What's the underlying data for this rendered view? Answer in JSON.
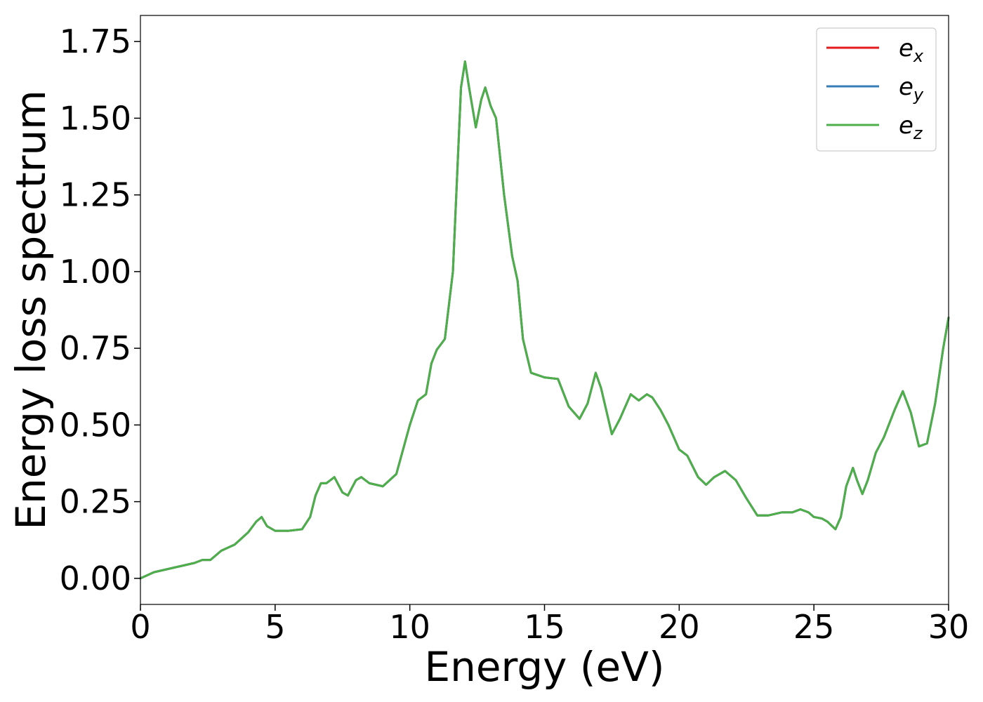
{
  "chart_data": {
    "type": "line",
    "xlabel": "Energy (eV)",
    "ylabel": "Energy loss spectrum",
    "xlim": [
      0,
      30
    ],
    "ylim": [
      -0.085,
      1.835
    ],
    "xticks": [
      0,
      5,
      10,
      15,
      20,
      25,
      30
    ],
    "xtick_labels": [
      "0",
      "5",
      "10",
      "15",
      "20",
      "25",
      "30"
    ],
    "yticks": [
      0,
      0.25,
      0.5,
      0.75,
      1.0,
      1.25,
      1.5,
      1.75
    ],
    "ytick_labels": [
      "0.00",
      "0.25",
      "0.50",
      "0.75",
      "1.00",
      "1.25",
      "1.50",
      "1.75"
    ],
    "grid": false,
    "legend_position": "top-right",
    "x": [
      0,
      0.5,
      1.0,
      1.5,
      2.0,
      2.3,
      2.6,
      3.0,
      3.5,
      4.0,
      4.3,
      4.5,
      4.7,
      5.0,
      5.5,
      6.0,
      6.3,
      6.5,
      6.7,
      6.9,
      7.2,
      7.5,
      7.7,
      8.0,
      8.2,
      8.5,
      9.0,
      9.5,
      10.0,
      10.3,
      10.6,
      10.8,
      11.0,
      11.3,
      11.6,
      11.9,
      12.05,
      12.2,
      12.45,
      12.65,
      12.8,
      13.0,
      13.2,
      13.5,
      13.8,
      14.0,
      14.2,
      14.5,
      15.0,
      15.5,
      15.9,
      16.3,
      16.6,
      16.9,
      17.1,
      17.5,
      17.8,
      18.2,
      18.5,
      18.8,
      19.0,
      19.3,
      19.6,
      20.0,
      20.3,
      20.7,
      21.0,
      21.3,
      21.7,
      22.1,
      22.5,
      22.9,
      23.3,
      23.8,
      24.2,
      24.5,
      24.8,
      25.0,
      25.3,
      25.5,
      25.8,
      26.0,
      26.2,
      26.45,
      26.6,
      26.8,
      27.0,
      27.3,
      27.6,
      28.0,
      28.3,
      28.6,
      28.9,
      29.2,
      29.5,
      29.8,
      30.0
    ],
    "series": [
      {
        "name": "e_x",
        "color": "#e41a1c",
        "values": [
          0,
          0.02,
          0.03,
          0.04,
          0.05,
          0.06,
          0.06,
          0.09,
          0.11,
          0.15,
          0.185,
          0.2,
          0.17,
          0.155,
          0.155,
          0.16,
          0.2,
          0.27,
          0.31,
          0.31,
          0.33,
          0.28,
          0.27,
          0.32,
          0.33,
          0.31,
          0.3,
          0.34,
          0.5,
          0.58,
          0.6,
          0.7,
          0.745,
          0.78,
          1.0,
          1.6,
          1.685,
          1.6,
          1.47,
          1.56,
          1.6,
          1.54,
          1.5,
          1.25,
          1.05,
          0.97,
          0.78,
          0.67,
          0.655,
          0.65,
          0.56,
          0.52,
          0.57,
          0.67,
          0.62,
          0.47,
          0.52,
          0.6,
          0.58,
          0.6,
          0.59,
          0.55,
          0.5,
          0.42,
          0.4,
          0.33,
          0.305,
          0.33,
          0.35,
          0.32,
          0.26,
          0.205,
          0.205,
          0.215,
          0.215,
          0.225,
          0.215,
          0.2,
          0.195,
          0.185,
          0.16,
          0.2,
          0.3,
          0.36,
          0.32,
          0.275,
          0.32,
          0.41,
          0.46,
          0.55,
          0.61,
          0.54,
          0.43,
          0.44,
          0.57,
          0.75,
          0.85
        ]
      },
      {
        "name": "e_y",
        "color": "#377eb8",
        "values": [
          0,
          0.02,
          0.03,
          0.04,
          0.05,
          0.06,
          0.06,
          0.09,
          0.11,
          0.15,
          0.185,
          0.2,
          0.17,
          0.155,
          0.155,
          0.16,
          0.2,
          0.27,
          0.31,
          0.31,
          0.33,
          0.28,
          0.27,
          0.32,
          0.33,
          0.31,
          0.3,
          0.34,
          0.5,
          0.58,
          0.6,
          0.7,
          0.745,
          0.78,
          1.0,
          1.6,
          1.685,
          1.6,
          1.47,
          1.56,
          1.6,
          1.54,
          1.5,
          1.25,
          1.05,
          0.97,
          0.78,
          0.67,
          0.655,
          0.65,
          0.56,
          0.52,
          0.57,
          0.67,
          0.62,
          0.47,
          0.52,
          0.6,
          0.58,
          0.6,
          0.59,
          0.55,
          0.5,
          0.42,
          0.4,
          0.33,
          0.305,
          0.33,
          0.35,
          0.32,
          0.26,
          0.205,
          0.205,
          0.215,
          0.215,
          0.225,
          0.215,
          0.2,
          0.195,
          0.185,
          0.16,
          0.2,
          0.3,
          0.36,
          0.32,
          0.275,
          0.32,
          0.41,
          0.46,
          0.55,
          0.61,
          0.54,
          0.43,
          0.44,
          0.57,
          0.75,
          0.85
        ]
      },
      {
        "name": "e_z",
        "color": "#4daf4a",
        "values": [
          0,
          0.02,
          0.03,
          0.04,
          0.05,
          0.06,
          0.06,
          0.09,
          0.11,
          0.15,
          0.185,
          0.2,
          0.17,
          0.155,
          0.155,
          0.16,
          0.2,
          0.27,
          0.31,
          0.31,
          0.33,
          0.28,
          0.27,
          0.32,
          0.33,
          0.31,
          0.3,
          0.34,
          0.5,
          0.58,
          0.6,
          0.7,
          0.745,
          0.78,
          1.0,
          1.6,
          1.685,
          1.6,
          1.47,
          1.56,
          1.6,
          1.54,
          1.5,
          1.25,
          1.05,
          0.97,
          0.78,
          0.67,
          0.655,
          0.65,
          0.56,
          0.52,
          0.57,
          0.67,
          0.62,
          0.47,
          0.52,
          0.6,
          0.58,
          0.6,
          0.59,
          0.55,
          0.5,
          0.42,
          0.4,
          0.33,
          0.305,
          0.33,
          0.35,
          0.32,
          0.26,
          0.205,
          0.205,
          0.215,
          0.215,
          0.225,
          0.215,
          0.2,
          0.195,
          0.185,
          0.16,
          0.2,
          0.3,
          0.36,
          0.32,
          0.275,
          0.32,
          0.41,
          0.46,
          0.55,
          0.61,
          0.54,
          0.43,
          0.44,
          0.57,
          0.75,
          0.85
        ]
      }
    ],
    "legend": [
      {
        "base": "e",
        "sub": "x",
        "color": "#e41a1c"
      },
      {
        "base": "e",
        "sub": "y",
        "color": "#377eb8"
      },
      {
        "base": "e",
        "sub": "z",
        "color": "#4daf4a"
      }
    ]
  }
}
